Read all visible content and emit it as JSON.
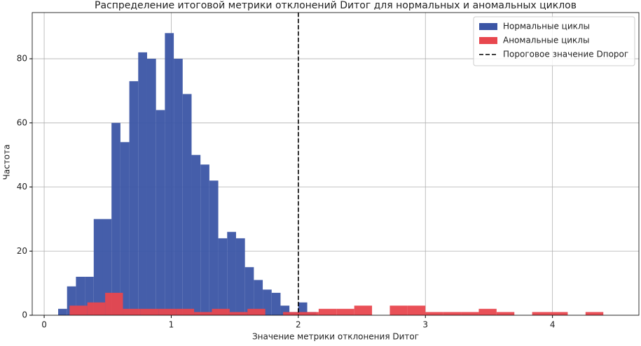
{
  "chart_data": {
    "type": "histogram",
    "title": "Распределение итоговой метрики отклонений Dитог для нормальных и аномальных циклов",
    "xlabel": "Значение метрики отклонения Dитог",
    "ylabel": "Частота",
    "xlim": [
      -0.094,
      4.68
    ],
    "ylim": [
      0,
      94.4
    ],
    "xticks": [
      0,
      1,
      2,
      3,
      4
    ],
    "yticks": [
      0,
      20,
      40,
      60,
      80
    ],
    "grid": true,
    "legend": "upper right",
    "series": [
      {
        "name": "Нормальные циклы",
        "color": "#3b55a5",
        "bins": [
          0.11,
          0.18,
          0.25,
          0.32,
          0.39,
          0.46,
          0.53,
          0.6,
          0.67,
          0.74,
          0.81,
          0.88,
          0.95,
          1.02,
          1.09,
          1.16,
          1.23,
          1.3,
          1.37,
          1.44,
          1.51,
          1.58,
          1.65,
          1.72,
          1.79,
          1.86,
          1.93,
          2.0,
          2.07,
          2.14
        ],
        "values": [
          2,
          9,
          12,
          12,
          30,
          30,
          60,
          54,
          73,
          82,
          80,
          64,
          88,
          80,
          69,
          50,
          47,
          42,
          24,
          26,
          24,
          15,
          11,
          8,
          7,
          3,
          1,
          4,
          1
        ]
      },
      {
        "name": "Аномальные циклы",
        "color": "#e8474e",
        "bins": [
          0.2,
          0.34,
          0.48,
          0.62,
          0.76,
          0.9,
          1.04,
          1.18,
          1.32,
          1.46,
          1.6,
          1.74,
          1.88,
          2.02,
          2.16,
          2.3,
          2.44,
          2.58,
          2.72,
          2.86,
          3.0,
          3.14,
          3.28,
          3.42,
          3.56,
          3.7,
          3.84,
          3.98,
          4.12,
          4.26,
          4.4
        ],
        "values": [
          3,
          4,
          7,
          2,
          2,
          2,
          2,
          1,
          2,
          1,
          2,
          0,
          1,
          1,
          2,
          2,
          3,
          0,
          3,
          3,
          1,
          1,
          1,
          2,
          1,
          0,
          1,
          1,
          0,
          1
        ]
      }
    ],
    "threshold": {
      "value": 2,
      "label": "Пороговое значение Dпорог",
      "color": "#000000"
    }
  }
}
